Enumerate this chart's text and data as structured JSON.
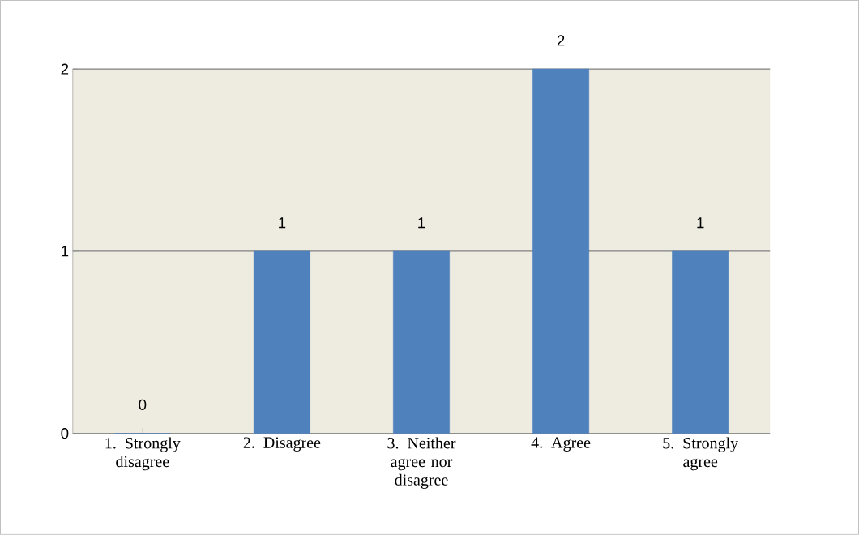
{
  "chart_data": {
    "type": "bar",
    "categories": [
      "1. Strongly disagree",
      "2. Disagree",
      "3. Neither agree nor disagree",
      "4. Agree",
      "5. Strongly agree"
    ],
    "values": [
      0,
      1,
      1,
      2,
      1
    ],
    "color": "#4f81bd",
    "ylim": [
      0,
      2
    ],
    "yticks": [
      0,
      1,
      2
    ],
    "grid": "y",
    "data_labels": true
  }
}
